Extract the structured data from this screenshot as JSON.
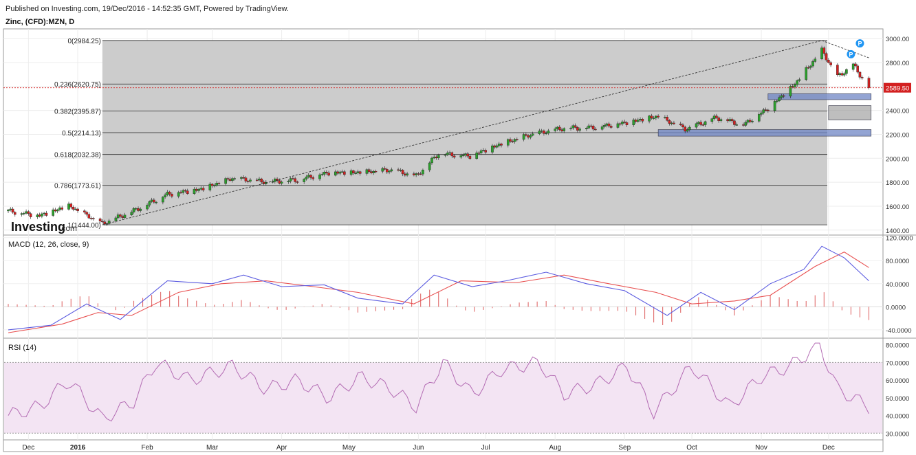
{
  "header": {
    "published": "Published on Investing.com, 19/Dec/2016 - 14:52:35 GMT, Powered by TradingView.",
    "symbol": "Zinc, (CFD):MZN, D"
  },
  "brand": {
    "logo_main": "Investing",
    "logo_suffix": ".com"
  },
  "colors": {
    "up": "#2ca02c",
    "down": "#d32020",
    "fib_fill": "#cccccc",
    "zone": "#6f86c4",
    "macd": "#5b5be0",
    "signal": "#e85050",
    "rsi": "#b36bb3",
    "rsi_band": "#f3e4f3"
  },
  "chart_data": [
    {
      "type": "candlestick",
      "title": "Zinc, (CFD):MZN, D",
      "x_labels": [
        "Dec",
        "2016",
        "Feb",
        "Mar",
        "Apr",
        "May",
        "Jun",
        "Jul",
        "Aug",
        "Sep",
        "Oct",
        "Nov",
        "Dec"
      ],
      "y_ticks": [
        "1400.00",
        "1600.00",
        "1800.00",
        "2000.00",
        "2200.00",
        "2400.00",
        "2600.00",
        "2800.00",
        "3000.00"
      ],
      "ylim": [
        1370,
        3070
      ],
      "last_price": "2589.50",
      "fibonacci": [
        {
          "label": "0(2984.25)",
          "value": 2984.25
        },
        {
          "label": "0.236(2620.75)",
          "value": 2620.75
        },
        {
          "label": "0.382(2395.87)",
          "value": 2395.87
        },
        {
          "label": "0.5(2214.13)",
          "value": 2214.13
        },
        {
          "label": "0.618(2032.38)",
          "value": 2032.38
        },
        {
          "label": "0.786(1773.61)",
          "value": 1773.61
        },
        {
          "label": "1(1444.00)",
          "value": 1444.0
        }
      ],
      "close_points": [
        [
          "2015-12-01",
          1560
        ],
        [
          "2015-12-15",
          1520
        ],
        [
          "2015-12-28",
          1600
        ],
        [
          "2016-01-12",
          1450
        ],
        [
          "2016-01-26",
          1560
        ],
        [
          "2016-02-10",
          1700
        ],
        [
          "2016-02-25",
          1740
        ],
        [
          "2016-03-10",
          1830
        ],
        [
          "2016-03-25",
          1800
        ],
        [
          "2016-04-08",
          1820
        ],
        [
          "2016-04-22",
          1880
        ],
        [
          "2016-05-06",
          1880
        ],
        [
          "2016-05-20",
          1900
        ],
        [
          "2016-05-31",
          1850
        ],
        [
          "2016-06-10",
          2040
        ],
        [
          "2016-06-24",
          2020
        ],
        [
          "2016-07-08",
          2120
        ],
        [
          "2016-07-22",
          2200
        ],
        [
          "2016-08-05",
          2250
        ],
        [
          "2016-08-19",
          2260
        ],
        [
          "2016-09-02",
          2300
        ],
        [
          "2016-09-16",
          2350
        ],
        [
          "2016-09-28",
          2240
        ],
        [
          "2016-10-12",
          2340
        ],
        [
          "2016-10-24",
          2280
        ],
        [
          "2016-11-04",
          2420
        ],
        [
          "2016-11-16",
          2620
        ],
        [
          "2016-11-28",
          2900
        ],
        [
          "2016-12-05",
          2680
        ],
        [
          "2016-12-12",
          2780
        ],
        [
          "2016-12-19",
          2589.5
        ]
      ],
      "trendline": [
        [
          "2016-01-12",
          1444
        ],
        [
          "2016-11-28",
          2984
        ],
        [
          "2016-12-19",
          2840
        ]
      ],
      "zones": [
        {
          "from": "2016-11-04",
          "to": "2016-12-20",
          "low": 2490,
          "high": 2540
        },
        {
          "from": "2016-09-16",
          "to": "2016-12-20",
          "low": 2185,
          "high": 2240
        },
        {
          "from": "2016-12-01",
          "to": "2016-12-20",
          "low": 2320,
          "high": 2440
        }
      ],
      "markers": [
        "P",
        "P"
      ]
    },
    {
      "type": "line",
      "title": "MACD (12, 26, close, 9)",
      "y_ticks": [
        "-40.0000",
        "0.0000",
        "40.0000",
        "80.0000",
        "120.0000"
      ],
      "ylim": [
        -52,
        122
      ],
      "series": [
        {
          "name": "MACD",
          "points": [
            [
              "2015-12-01",
              -40
            ],
            [
              "2015-12-20",
              -32
            ],
            [
              "2016-01-05",
              5
            ],
            [
              "2016-01-20",
              -22
            ],
            [
              "2016-02-10",
              45
            ],
            [
              "2016-03-01",
              40
            ],
            [
              "2016-03-15",
              55
            ],
            [
              "2016-04-01",
              35
            ],
            [
              "2016-04-20",
              38
            ],
            [
              "2016-05-05",
              15
            ],
            [
              "2016-05-25",
              5
            ],
            [
              "2016-06-08",
              55
            ],
            [
              "2016-06-25",
              35
            ],
            [
              "2016-07-10",
              45
            ],
            [
              "2016-07-28",
              60
            ],
            [
              "2016-08-15",
              40
            ],
            [
              "2016-09-01",
              28
            ],
            [
              "2016-09-20",
              -15
            ],
            [
              "2016-10-05",
              25
            ],
            [
              "2016-10-20",
              -5
            ],
            [
              "2016-11-05",
              40
            ],
            [
              "2016-11-20",
              65
            ],
            [
              "2016-11-28",
              105
            ],
            [
              "2016-12-08",
              85
            ],
            [
              "2016-12-19",
              45
            ]
          ]
        },
        {
          "name": "Signal",
          "points": [
            [
              "2015-12-01",
              -45
            ],
            [
              "2015-12-25",
              -30
            ],
            [
              "2016-01-10",
              -10
            ],
            [
              "2016-01-25",
              -15
            ],
            [
              "2016-02-15",
              25
            ],
            [
              "2016-03-05",
              40
            ],
            [
              "2016-03-25",
              45
            ],
            [
              "2016-04-15",
              35
            ],
            [
              "2016-05-05",
              25
            ],
            [
              "2016-05-30",
              5
            ],
            [
              "2016-06-20",
              45
            ],
            [
              "2016-07-15",
              42
            ],
            [
              "2016-08-05",
              55
            ],
            [
              "2016-08-25",
              40
            ],
            [
              "2016-09-15",
              25
            ],
            [
              "2016-10-01",
              5
            ],
            [
              "2016-10-20",
              10
            ],
            [
              "2016-11-05",
              20
            ],
            [
              "2016-11-25",
              70
            ],
            [
              "2016-12-08",
              95
            ],
            [
              "2016-12-19",
              68
            ]
          ]
        }
      ]
    },
    {
      "type": "line",
      "title": "RSI (14)",
      "y_ticks": [
        "30.0000",
        "40.0000",
        "50.0000",
        "60.0000",
        "70.0000",
        "80.0000"
      ],
      "ylim": [
        27,
        83
      ],
      "bands": [
        30,
        70
      ],
      "series": [
        {
          "name": "RSI",
          "points": [
            [
              "2015-12-01",
              40
            ],
            [
              "2015-12-15",
              45
            ],
            [
              "2015-12-28",
              60
            ],
            [
              "2016-01-12",
              38
            ],
            [
              "2016-01-26",
              48
            ],
            [
              "2016-02-05",
              70
            ],
            [
              "2016-02-20",
              60
            ],
            [
              "2016-03-10",
              68
            ],
            [
              "2016-03-25",
              55
            ],
            [
              "2016-04-08",
              60
            ],
            [
              "2016-04-22",
              50
            ],
            [
              "2016-05-06",
              62
            ],
            [
              "2016-05-20",
              55
            ],
            [
              "2016-05-31",
              45
            ],
            [
              "2016-06-12",
              70
            ],
            [
              "2016-06-25",
              52
            ],
            [
              "2016-07-08",
              66
            ],
            [
              "2016-07-25",
              70
            ],
            [
              "2016-08-05",
              52
            ],
            [
              "2016-08-20",
              58
            ],
            [
              "2016-09-02",
              68
            ],
            [
              "2016-09-14",
              42
            ],
            [
              "2016-10-01",
              68
            ],
            [
              "2016-10-18",
              45
            ],
            [
              "2016-11-01",
              62
            ],
            [
              "2016-11-14",
              68
            ],
            [
              "2016-11-27",
              80
            ],
            [
              "2016-12-05",
              55
            ],
            [
              "2016-12-19",
              45
            ]
          ]
        }
      ]
    }
  ]
}
